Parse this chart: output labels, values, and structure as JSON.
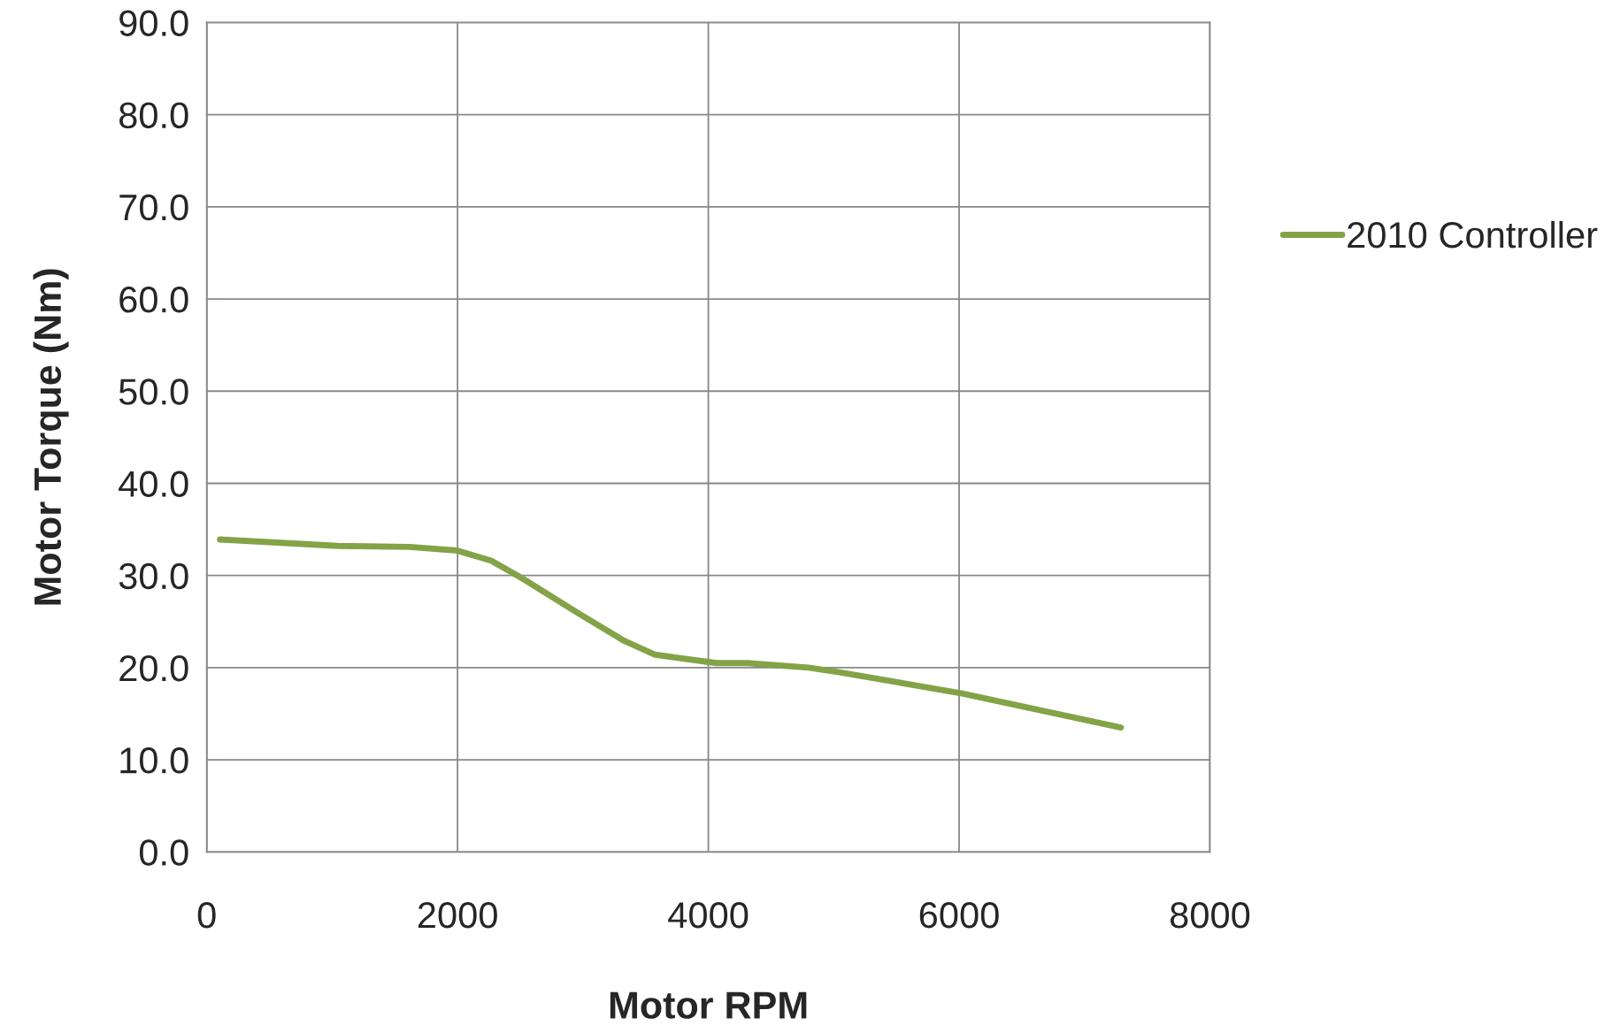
{
  "chart_data": {
    "type": "line",
    "xlabel": "Motor RPM",
    "ylabel": "Motor Torque (Nm)",
    "xlim": [
      0,
      8000
    ],
    "xticks": [
      0,
      2000,
      4000,
      6000,
      8000
    ],
    "ylim": [
      0,
      90
    ],
    "yticks": [
      {
        "value": 0,
        "label": "0.0"
      },
      {
        "value": 10,
        "label": "10.0"
      },
      {
        "value": 20,
        "label": "20.0"
      },
      {
        "value": 30,
        "label": "30.0"
      },
      {
        "value": 40,
        "label": "40.0"
      },
      {
        "value": 50,
        "label": "50.0"
      },
      {
        "value": 60,
        "label": "60.0"
      },
      {
        "value": 70,
        "label": "70.0"
      },
      {
        "value": 80,
        "label": "80.0"
      },
      {
        "value": 90,
        "label": "90.0"
      }
    ],
    "grid": true,
    "legend": "right",
    "series": [
      {
        "name": "2010 Controller",
        "color": "#83a347",
        "x": [
          106,
          1045,
          1616,
          2000,
          2269,
          2514,
          2963,
          3331,
          3576,
          4065,
          4310,
          4800,
          5045,
          6024,
          7290
        ],
        "values": [
          33.9,
          33.2,
          33.1,
          32.7,
          31.6,
          29.7,
          25.9,
          22.9,
          21.4,
          20.5,
          20.5,
          20.0,
          19.5,
          17.2,
          13.5
        ]
      }
    ]
  }
}
